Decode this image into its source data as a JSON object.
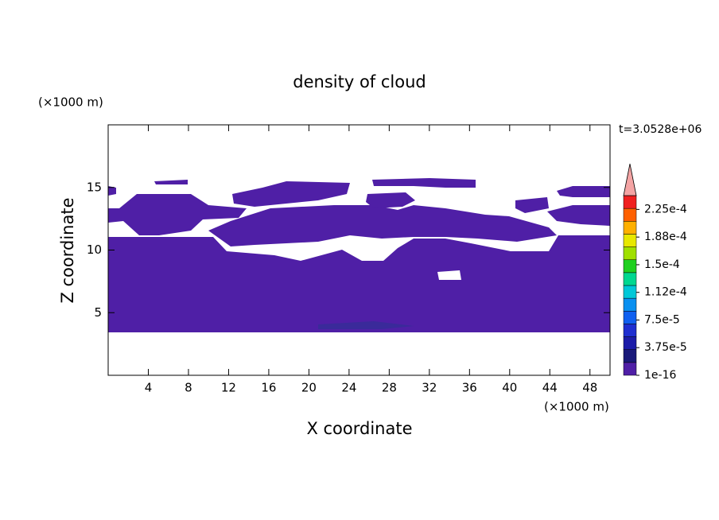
{
  "chart_data": {
    "type": "contour",
    "title": "density of cloud",
    "x_label": "X coordinate",
    "y_label": "Z coordinate",
    "x_unit": "(×1000 m)",
    "y_unit": "(×1000 m)",
    "time_label": "t=3.0528e+06",
    "xlim": [
      0,
      50
    ],
    "ylim": [
      0,
      20
    ],
    "xticks": [
      4,
      8,
      12,
      16,
      20,
      24,
      28,
      32,
      36,
      40,
      44,
      48
    ],
    "yticks": [
      5,
      10,
      15
    ],
    "colorbar": {
      "clim": [
        1e-16,
        0.00024375
      ],
      "colors": [
        "#4f1fa6",
        "#1a1a7a",
        "#1c1ca8",
        "#1f2fd0",
        "#1060f0",
        "#0a90f0",
        "#00c8d8",
        "#00d890",
        "#20d020",
        "#a0e000",
        "#e8e800",
        "#ffb000",
        "#ff6000",
        "#f02020"
      ],
      "extend_color": "#f4a4a4",
      "ticks": [
        1e-16,
        {
          "value": 3.75e-05,
          "label": "3.75e-5"
        },
        {
          "value": 7.5e-05,
          "label": "7.5e-5"
        },
        {
          "value": 0.0001125,
          "label": "1.12e-4"
        },
        {
          "value": 0.00015,
          "label": "1.5e-4"
        },
        {
          "value": 0.0001875,
          "label": "1.88e-4"
        },
        {
          "value": 0.000225,
          "label": "2.25e-4"
        }
      ]
    }
  }
}
